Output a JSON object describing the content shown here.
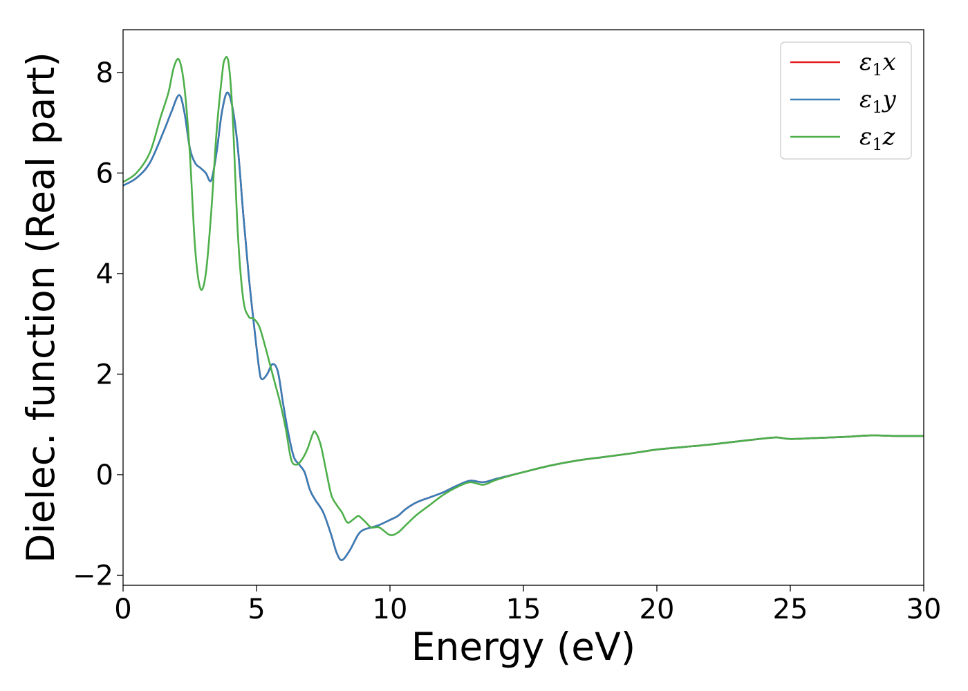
{
  "chart_data": {
    "type": "line",
    "title": "",
    "xlabel": "Energy (eV)",
    "ylabel": "Dielec. function (Real part)",
    "xlim": [
      0,
      30
    ],
    "ylim": [
      -2.2,
      8.85
    ],
    "x_ticks": [
      0,
      5,
      10,
      15,
      20,
      25,
      30
    ],
    "y_ticks": [
      -2,
      0,
      2,
      4,
      6,
      8
    ],
    "x_tick_labels": [
      "0",
      "5",
      "10",
      "15",
      "20",
      "25",
      "30"
    ],
    "y_tick_labels": [
      "−2",
      "0",
      "2",
      "4",
      "6",
      "8"
    ],
    "grid": false,
    "legend": {
      "position": "top-right",
      "entries": [
        {
          "series": "eps1x",
          "base": "ε",
          "sub": "1",
          "suffix": "x"
        },
        {
          "series": "eps1y",
          "base": "ε",
          "sub": "1",
          "suffix": "y"
        },
        {
          "series": "eps1z",
          "base": "ε",
          "sub": "1",
          "suffix": "z"
        }
      ]
    },
    "series": [
      {
        "id": "eps1x",
        "name": "ε1x",
        "color": "#e41a1c",
        "x": [
          0,
          0.5,
          1.0,
          1.5,
          1.8,
          2.1,
          2.3,
          2.5,
          2.7,
          2.9,
          3.1,
          3.3,
          3.5,
          3.7,
          3.9,
          4.1,
          4.3,
          4.5,
          4.7,
          4.9,
          5.1,
          5.2,
          5.4,
          5.6,
          5.8,
          6.0,
          6.2,
          6.4,
          6.6,
          6.8,
          7.0,
          7.2,
          7.5,
          7.8,
          8.0,
          8.2,
          8.5,
          8.8,
          9.0,
          9.3,
          9.6,
          10.0,
          10.3,
          10.6,
          11.0,
          11.5,
          12.0,
          12.5,
          13.0,
          13.5,
          14.0,
          15.0,
          16.0,
          17.0,
          18.0,
          19.0,
          20.0,
          21.0,
          22.0,
          23.0,
          24.0,
          24.5,
          25.0,
          26.0,
          27.0,
          28.0,
          29.0,
          30.0
        ],
        "values": [
          5.75,
          5.9,
          6.2,
          6.8,
          7.2,
          7.55,
          7.2,
          6.5,
          6.2,
          6.1,
          6.0,
          5.85,
          6.4,
          7.2,
          7.6,
          7.3,
          6.5,
          5.2,
          4.0,
          3.0,
          2.1,
          1.9,
          2.0,
          2.2,
          2.05,
          1.4,
          0.8,
          0.35,
          0.2,
          0.05,
          -0.3,
          -0.5,
          -0.75,
          -1.2,
          -1.55,
          -1.7,
          -1.5,
          -1.2,
          -1.1,
          -1.05,
          -1.0,
          -0.9,
          -0.82,
          -0.68,
          -0.55,
          -0.45,
          -0.35,
          -0.22,
          -0.12,
          -0.15,
          -0.08,
          0.05,
          0.18,
          0.28,
          0.35,
          0.42,
          0.5,
          0.55,
          0.6,
          0.66,
          0.72,
          0.74,
          0.71,
          0.73,
          0.75,
          0.78,
          0.77,
          0.77
        ]
      },
      {
        "id": "eps1y",
        "name": "ε1y",
        "color": "#377eb8",
        "x": [
          0,
          0.5,
          1.0,
          1.5,
          1.8,
          2.1,
          2.3,
          2.5,
          2.7,
          2.9,
          3.1,
          3.3,
          3.5,
          3.7,
          3.9,
          4.1,
          4.3,
          4.5,
          4.7,
          4.9,
          5.1,
          5.2,
          5.4,
          5.6,
          5.8,
          6.0,
          6.2,
          6.4,
          6.6,
          6.8,
          7.0,
          7.2,
          7.5,
          7.8,
          8.0,
          8.2,
          8.5,
          8.8,
          9.0,
          9.3,
          9.6,
          10.0,
          10.3,
          10.6,
          11.0,
          11.5,
          12.0,
          12.5,
          13.0,
          13.5,
          14.0,
          15.0,
          16.0,
          17.0,
          18.0,
          19.0,
          20.0,
          21.0,
          22.0,
          23.0,
          24.0,
          24.5,
          25.0,
          26.0,
          27.0,
          28.0,
          29.0,
          30.0
        ],
        "values": [
          5.75,
          5.9,
          6.2,
          6.8,
          7.2,
          7.55,
          7.2,
          6.5,
          6.2,
          6.1,
          6.0,
          5.85,
          6.4,
          7.2,
          7.6,
          7.3,
          6.5,
          5.2,
          4.0,
          3.0,
          2.1,
          1.9,
          2.0,
          2.2,
          2.05,
          1.4,
          0.8,
          0.35,
          0.2,
          0.05,
          -0.3,
          -0.5,
          -0.75,
          -1.2,
          -1.55,
          -1.7,
          -1.5,
          -1.2,
          -1.1,
          -1.05,
          -1.0,
          -0.9,
          -0.82,
          -0.68,
          -0.55,
          -0.45,
          -0.35,
          -0.22,
          -0.12,
          -0.15,
          -0.08,
          0.05,
          0.18,
          0.28,
          0.35,
          0.42,
          0.5,
          0.55,
          0.6,
          0.66,
          0.72,
          0.74,
          0.71,
          0.73,
          0.75,
          0.78,
          0.77,
          0.77
        ]
      },
      {
        "id": "eps1z",
        "name": "ε1z",
        "color": "#4daf4a",
        "x": [
          0,
          0.5,
          1.0,
          1.4,
          1.7,
          1.9,
          2.1,
          2.3,
          2.5,
          2.7,
          2.9,
          3.1,
          3.3,
          3.5,
          3.7,
          3.8,
          3.95,
          4.1,
          4.3,
          4.5,
          4.7,
          4.9,
          5.1,
          5.3,
          5.5,
          5.7,
          5.9,
          6.1,
          6.3,
          6.5,
          6.7,
          6.9,
          7.1,
          7.2,
          7.4,
          7.6,
          7.8,
          8.0,
          8.2,
          8.4,
          8.6,
          8.8,
          8.9,
          9.1,
          9.3,
          9.6,
          10.0,
          10.3,
          10.6,
          11.0,
          11.5,
          12.0,
          12.5,
          13.0,
          13.5,
          14.0,
          15.0,
          16.0,
          17.0,
          18.0,
          19.0,
          20.0,
          21.0,
          22.0,
          23.0,
          24.0,
          24.5,
          25.0,
          26.0,
          27.0,
          28.0,
          29.0,
          30.0
        ],
        "values": [
          5.82,
          6.0,
          6.4,
          7.1,
          7.6,
          8.1,
          8.25,
          7.7,
          6.4,
          4.5,
          3.7,
          4.0,
          5.2,
          6.8,
          7.9,
          8.25,
          8.2,
          7.2,
          4.8,
          3.5,
          3.15,
          3.1,
          2.95,
          2.6,
          2.2,
          1.8,
          1.4,
          0.9,
          0.3,
          0.2,
          0.3,
          0.5,
          0.8,
          0.85,
          0.6,
          0.1,
          -0.4,
          -0.6,
          -0.75,
          -0.95,
          -0.9,
          -0.82,
          -0.85,
          -0.95,
          -1.05,
          -1.05,
          -1.2,
          -1.15,
          -1.0,
          -0.8,
          -0.6,
          -0.4,
          -0.25,
          -0.15,
          -0.2,
          -0.1,
          0.05,
          0.18,
          0.28,
          0.35,
          0.42,
          0.5,
          0.55,
          0.6,
          0.66,
          0.72,
          0.74,
          0.71,
          0.73,
          0.75,
          0.78,
          0.77,
          0.77
        ]
      }
    ]
  }
}
